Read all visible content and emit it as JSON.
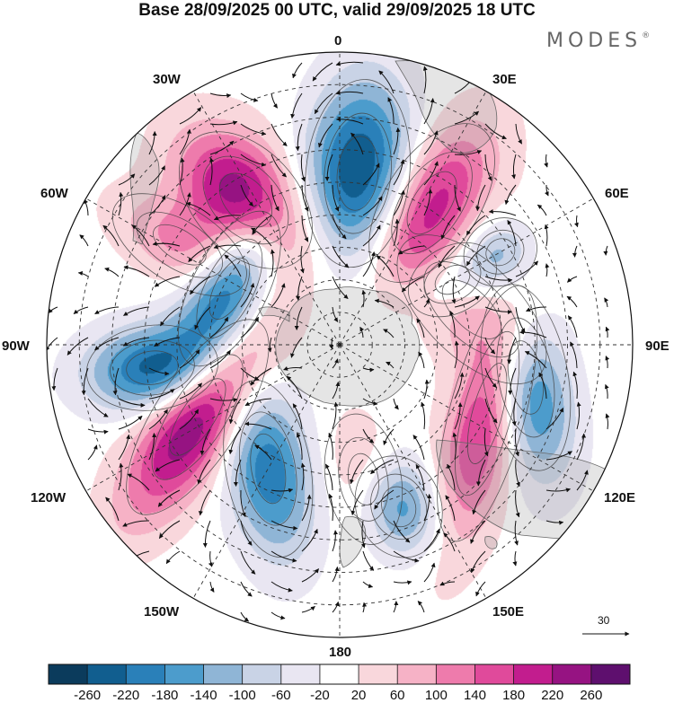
{
  "title": "Base 28/09/2025 00 UTC, valid 29/09/2025 18 UTC",
  "brand": {
    "name": "MODES",
    "mark": "®"
  },
  "longitude_labels": {
    "lon_0": "0",
    "lon_30e": "30E",
    "lon_60e": "60E",
    "lon_90e": "90E",
    "lon_120e": "120E",
    "lon_150e": "150E",
    "lon_180": "180",
    "lon_150w": "150W",
    "lon_120w": "120W",
    "lon_90w": "90W",
    "lon_60w": "60W",
    "lon_30w": "30W"
  },
  "reference_vector": {
    "value": "30"
  },
  "colorbar": {
    "ticks": [
      "-260",
      "-220",
      "-180",
      "-140",
      "-100",
      "-60",
      "-20",
      "20",
      "60",
      "100",
      "140",
      "180",
      "220",
      "260"
    ],
    "colors": [
      "#0b3b5c",
      "#115e8f",
      "#2a80b9",
      "#4c9ccc",
      "#8fb5d6",
      "#c9d3e6",
      "#e9e6f2",
      "#ffffff",
      "#f9d7dc",
      "#f6b2c6",
      "#ee7bac",
      "#e04a9b",
      "#c21d8e",
      "#961382",
      "#5e0f6e"
    ]
  },
  "anomaly_centers": [
    {
      "name": "low-south-atlantic",
      "lon": 6,
      "colat": 53,
      "amp": -270,
      "sa": 11,
      "sb": 20,
      "rot": 0
    },
    {
      "name": "high-west-atlantic",
      "lon": -33,
      "colat": 53,
      "amp": 270,
      "sa": 11,
      "sb": 17,
      "rot": -10
    },
    {
      "name": "low-drake-passage",
      "lon": -63,
      "colat": 38,
      "amp": -260,
      "sa": 8,
      "sb": 18,
      "rot": 90
    },
    {
      "name": "low-southeast-pacific",
      "lon": -97,
      "colat": 58,
      "amp": -230,
      "sa": 9,
      "sb": 14,
      "rot": 0
    },
    {
      "name": "high-south-pacific",
      "lon": -117,
      "colat": 49,
      "amp": 275,
      "sa": 9,
      "sb": 24,
      "rot": -30
    },
    {
      "name": "low-central-pacific",
      "lon": -150,
      "colat": 44,
      "amp": -210,
      "sa": 9,
      "sb": 19,
      "rot": -40
    },
    {
      "name": "low-tasman-sea",
      "lon": 160,
      "colat": 53,
      "amp": -180,
      "sa": 9,
      "sb": 11,
      "rot": 0
    },
    {
      "name": "high-southern-australia",
      "lon": 115,
      "colat": 50,
      "amp": 210,
      "sa": 8,
      "sb": 28,
      "rot": 80
    },
    {
      "name": "low-south-indian",
      "lon": 100,
      "colat": 58,
      "amp": -250,
      "sa": 9,
      "sb": 20,
      "rot": 70
    },
    {
      "name": "high-indian-ocean",
      "lon": 75,
      "colat": 42,
      "amp": 110,
      "sa": 10,
      "sb": 20,
      "rot": 60
    },
    {
      "name": "low-mid-indian",
      "lon": 60,
      "colat": 40,
      "amp": -110,
      "sa": 7,
      "sb": 10,
      "rot": 0
    },
    {
      "name": "low-madagascar",
      "lon": 60,
      "colat": 57,
      "amp": -90,
      "sa": 7,
      "sb": 8,
      "rot": 0
    },
    {
      "name": "high-south-africa",
      "lon": 33,
      "colat": 52,
      "amp": 200,
      "sa": 10,
      "sb": 19,
      "rot": 0
    },
    {
      "name": "high-south-america",
      "lon": -58,
      "colat": 58,
      "amp": 100,
      "sa": 8,
      "sb": 16,
      "rot": 0
    },
    {
      "name": "high-new-zealand",
      "lon": 170,
      "colat": 42,
      "amp": 80,
      "sa": 8,
      "sb": 14,
      "rot": 0
    }
  ]
}
